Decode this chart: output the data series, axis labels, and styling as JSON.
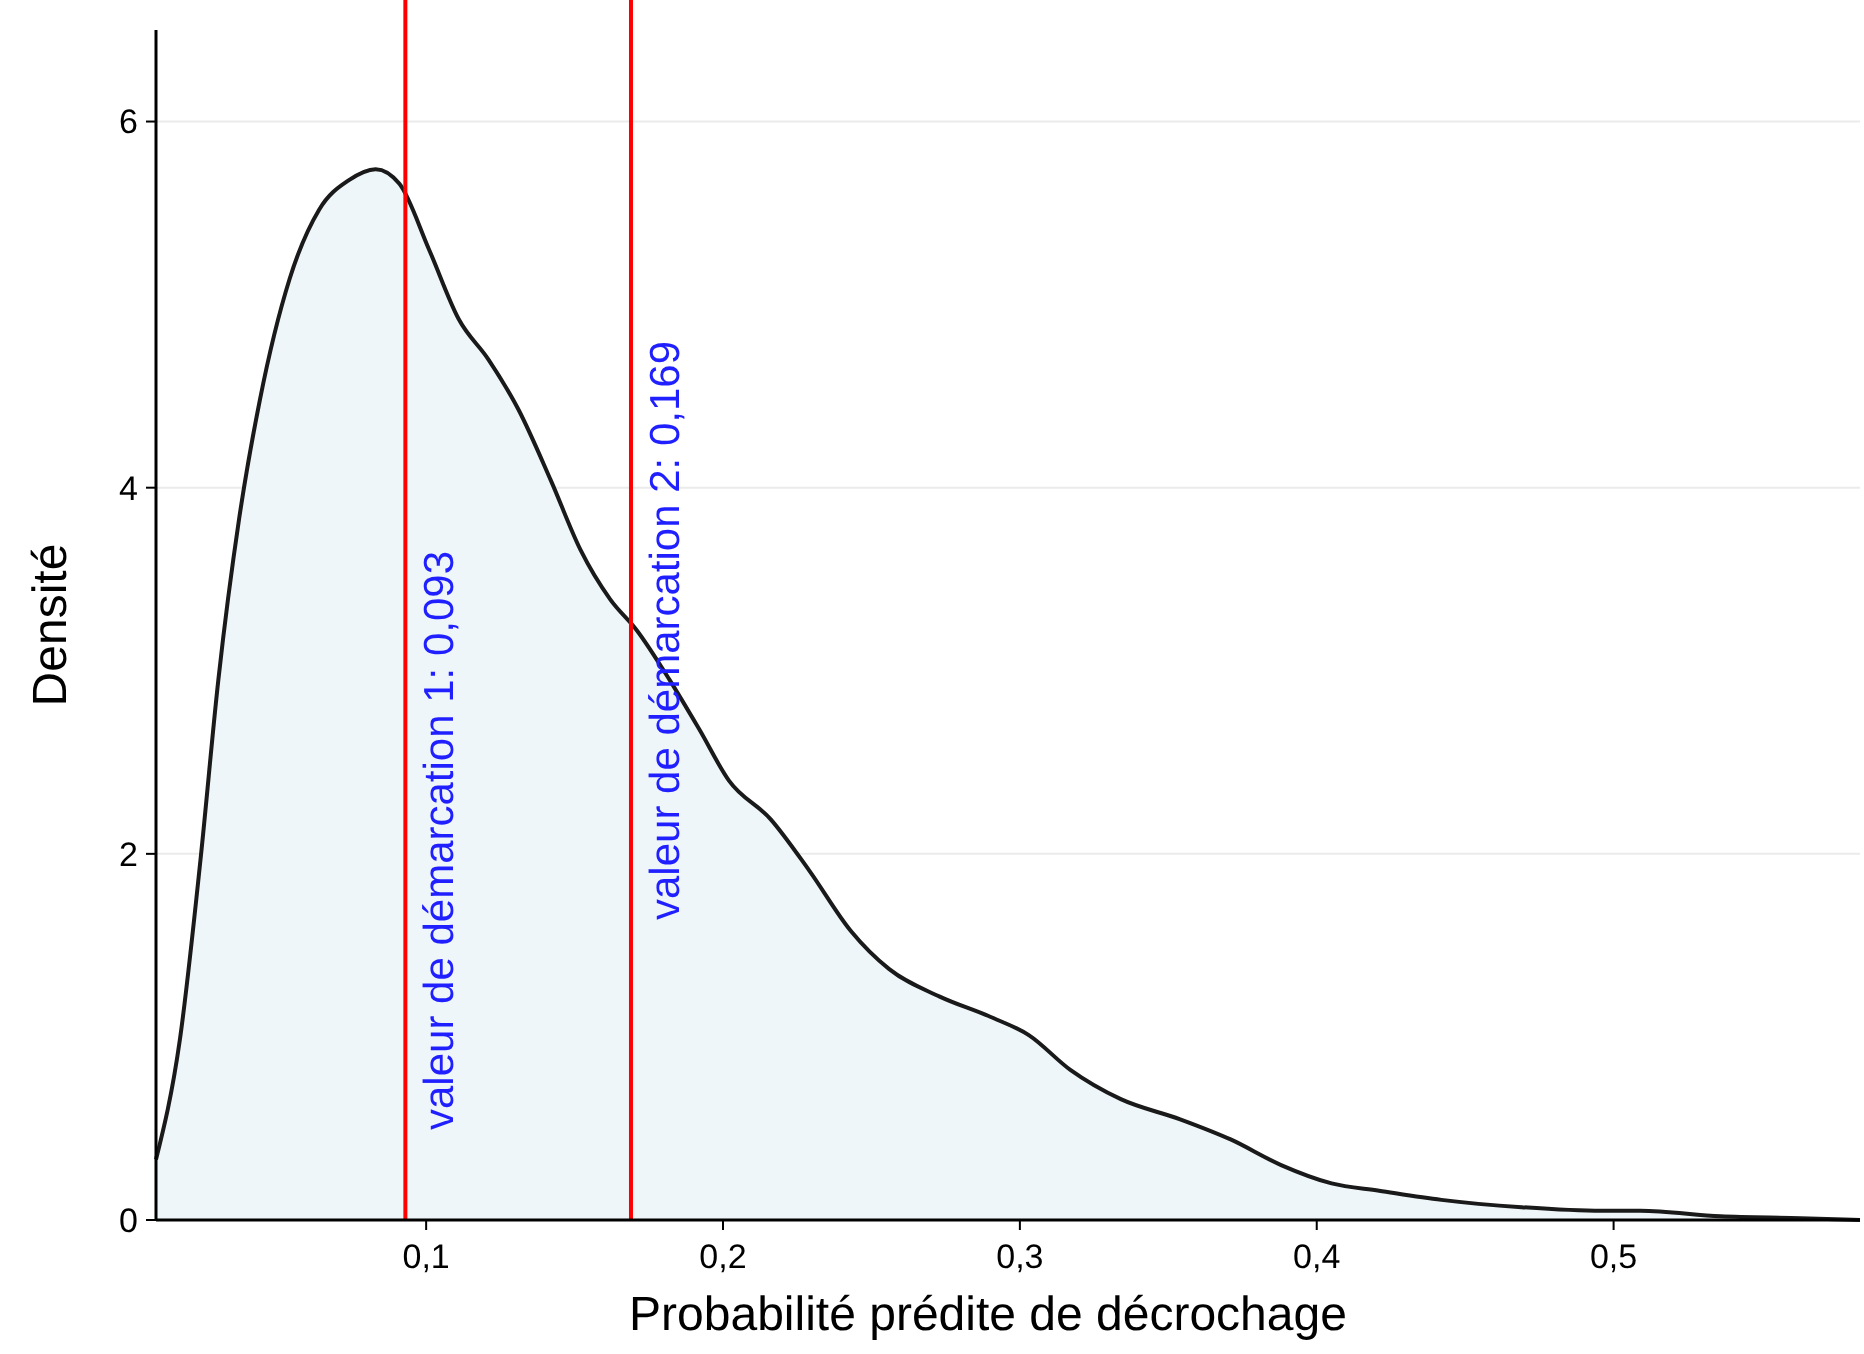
{
  "chart_data": {
    "type": "area",
    "xlabel": "Probabilité prédite de décrochage",
    "ylabel": "Densité",
    "x": [
      0.009,
      0.017,
      0.024,
      0.03,
      0.037,
      0.044,
      0.054,
      0.064,
      0.074,
      0.083,
      0.091,
      0.101,
      0.111,
      0.121,
      0.131,
      0.142,
      0.152,
      0.162,
      0.171,
      0.182,
      0.192,
      0.202,
      0.216,
      0.229,
      0.243,
      0.256,
      0.273,
      0.29,
      0.303,
      0.317,
      0.334,
      0.354,
      0.371,
      0.388,
      0.405,
      0.421,
      0.442,
      0.469,
      0.496,
      0.509,
      0.536,
      0.563,
      0.583
    ],
    "series": [
      {
        "color": "#eef6f9",
        "values": [
          0.33,
          0.98,
          1.97,
          2.95,
          3.83,
          4.48,
          5.14,
          5.52,
          5.68,
          5.74,
          5.66,
          5.3,
          4.92,
          4.7,
          4.43,
          4.04,
          3.66,
          3.39,
          3.22,
          2.95,
          2.68,
          2.4,
          2.19,
          1.91,
          1.58,
          1.37,
          1.22,
          1.11,
          1.01,
          0.82,
          0.66,
          0.55,
          0.44,
          0.3,
          0.2,
          0.16,
          0.11,
          0.07,
          0.05,
          0.05,
          0.02,
          0.01,
          0
        ]
      }
    ],
    "xlim": [
      0.009,
      0.583
    ],
    "ylim": [
      0,
      6.5
    ],
    "xticks": [
      {
        "value": 0.1,
        "label": "0,1"
      },
      {
        "value": 0.2,
        "label": "0,2"
      },
      {
        "value": 0.3,
        "label": "0,3"
      },
      {
        "value": 0.4,
        "label": "0,4"
      },
      {
        "value": 0.5,
        "label": "0,5"
      }
    ],
    "yticks": [
      0,
      2,
      4,
      6
    ],
    "grid": "y",
    "ref_lines": [
      {
        "axis": "x",
        "value": 0.093,
        "label": "valeur de démarcation 1: 0,093",
        "color": "#ff0000"
      },
      {
        "axis": "x",
        "value": 0.169,
        "label": "valeur de démarcation 2: 0,169",
        "color": "#ff0000"
      }
    ]
  }
}
